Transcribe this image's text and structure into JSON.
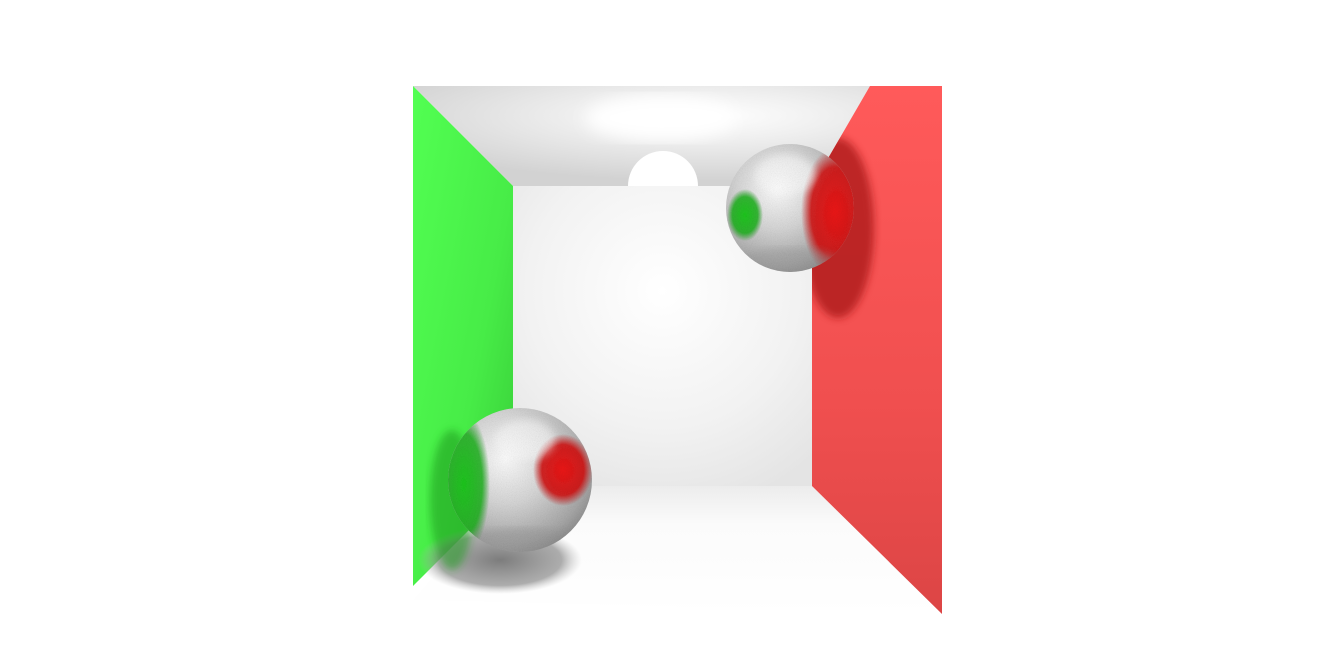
{
  "scene": {
    "kind": "cornell-box-render",
    "colors": {
      "background": "#ffffff",
      "left_wall": "#4cf04c",
      "right_wall": "#f24f4f",
      "back_wall": "#f6f6f6",
      "ceiling": "#dedede",
      "floor": "#fafafa",
      "sphere_base": "#d4d4d4"
    },
    "objects": [
      {
        "name": "left-wall",
        "color": "green"
      },
      {
        "name": "right-wall",
        "color": "red"
      },
      {
        "name": "back-wall",
        "color": "white"
      },
      {
        "name": "ceiling",
        "color": "light-gray"
      },
      {
        "name": "floor",
        "color": "white"
      },
      {
        "name": "ceiling-light",
        "color": "white"
      },
      {
        "name": "upper-right-sphere",
        "material": "reflective"
      },
      {
        "name": "lower-left-sphere",
        "material": "reflective"
      }
    ]
  }
}
